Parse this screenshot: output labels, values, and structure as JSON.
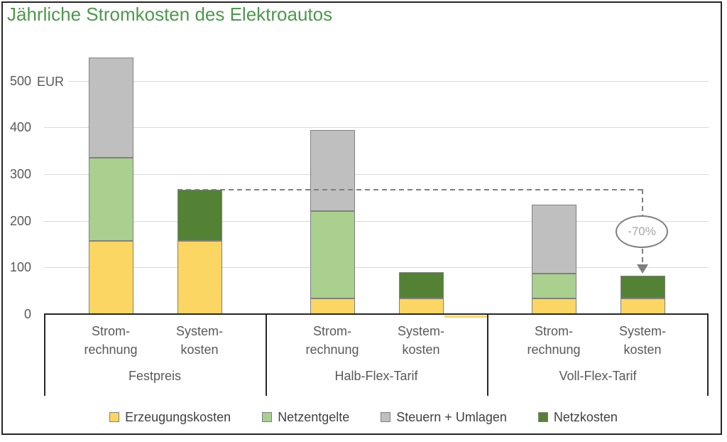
{
  "title": "Jährliche Stromkosten des Elektroautos",
  "colors": {
    "title": "#4C984C",
    "axis_text": "#595959",
    "legend_text": "#404040",
    "grid": "#D9D9D9",
    "frame": "#262626",
    "annotation_line": "#7F7F7F",
    "annotation_text": "#A6A6A6",
    "segment_border": "#808080"
  },
  "chart_data": {
    "type": "bar",
    "stacked": true,
    "title": "Jährliche Stromkosten des Elektroautos",
    "unit": "EUR",
    "ylim": [
      0,
      560
    ],
    "yticks": [
      0,
      100,
      200,
      300,
      400,
      500
    ],
    "grid": "horizontal",
    "legend_position": "bottom",
    "series": [
      {
        "name": "Erzeugungskosten",
        "color": "#FCD662"
      },
      {
        "name": "Netzentgelte",
        "color": "#A9D08E"
      },
      {
        "name": "Steuern + Umlagen",
        "color": "#BFBFBF"
      },
      {
        "name": "Netzkosten",
        "color": "#548235"
      }
    ],
    "groups": [
      {
        "label": "Festpreis",
        "bars": [
          {
            "label_lines": [
              "Strom-",
              "rechnung"
            ],
            "segments": [
              {
                "series": "Erzeugungskosten",
                "value": 157
              },
              {
                "series": "Netzentgelte",
                "value": 178
              },
              {
                "series": "Steuern + Umlagen",
                "value": 215
              }
            ],
            "total": 550
          },
          {
            "label_lines": [
              "System-",
              "kosten"
            ],
            "segments": [
              {
                "series": "Erzeugungskosten",
                "value": 157
              },
              {
                "series": "Netzkosten",
                "value": 110
              }
            ],
            "total": 267
          }
        ]
      },
      {
        "label": "Halb-Flex-Tarif",
        "bars": [
          {
            "label_lines": [
              "Strom-",
              "rechnung"
            ],
            "segments": [
              {
                "series": "Erzeugungskosten",
                "value": 33
              },
              {
                "series": "Netzentgelte",
                "value": 188
              },
              {
                "series": "Steuern + Umlagen",
                "value": 173
              }
            ],
            "total": 394
          },
          {
            "label_lines": [
              "System-",
              "kosten"
            ],
            "segments": [
              {
                "series": "Erzeugungskosten",
                "value": 33
              },
              {
                "series": "Netzkosten",
                "value": 57
              }
            ],
            "total": 90
          }
        ]
      },
      {
        "label": "Voll-Flex-Tarif",
        "bars": [
          {
            "label_lines": [
              "Strom-",
              "rechnung"
            ],
            "segments": [
              {
                "series": "Erzeugungskosten",
                "value": 33
              },
              {
                "series": "Netzentgelte",
                "value": 54
              },
              {
                "series": "Steuern + Umlagen",
                "value": 148
              }
            ],
            "total": 235
          },
          {
            "label_lines": [
              "System-",
              "kosten"
            ],
            "segments": [
              {
                "series": "Erzeugungskosten",
                "value": 33
              },
              {
                "series": "Netzkosten",
                "value": 49
              }
            ],
            "total": 82
          }
        ]
      }
    ],
    "negative_sliver": {
      "group": "Halb-Flex-Tarif",
      "series": "Erzeugungskosten",
      "value": -5
    },
    "annotation": {
      "label": "-70%",
      "reference_value": 267,
      "from_bar": "Festpreis Systemkosten",
      "to_bar": "Voll-Flex-Tarif Systemkosten",
      "style": "dashed line with down arrow into ellipse badge"
    }
  }
}
